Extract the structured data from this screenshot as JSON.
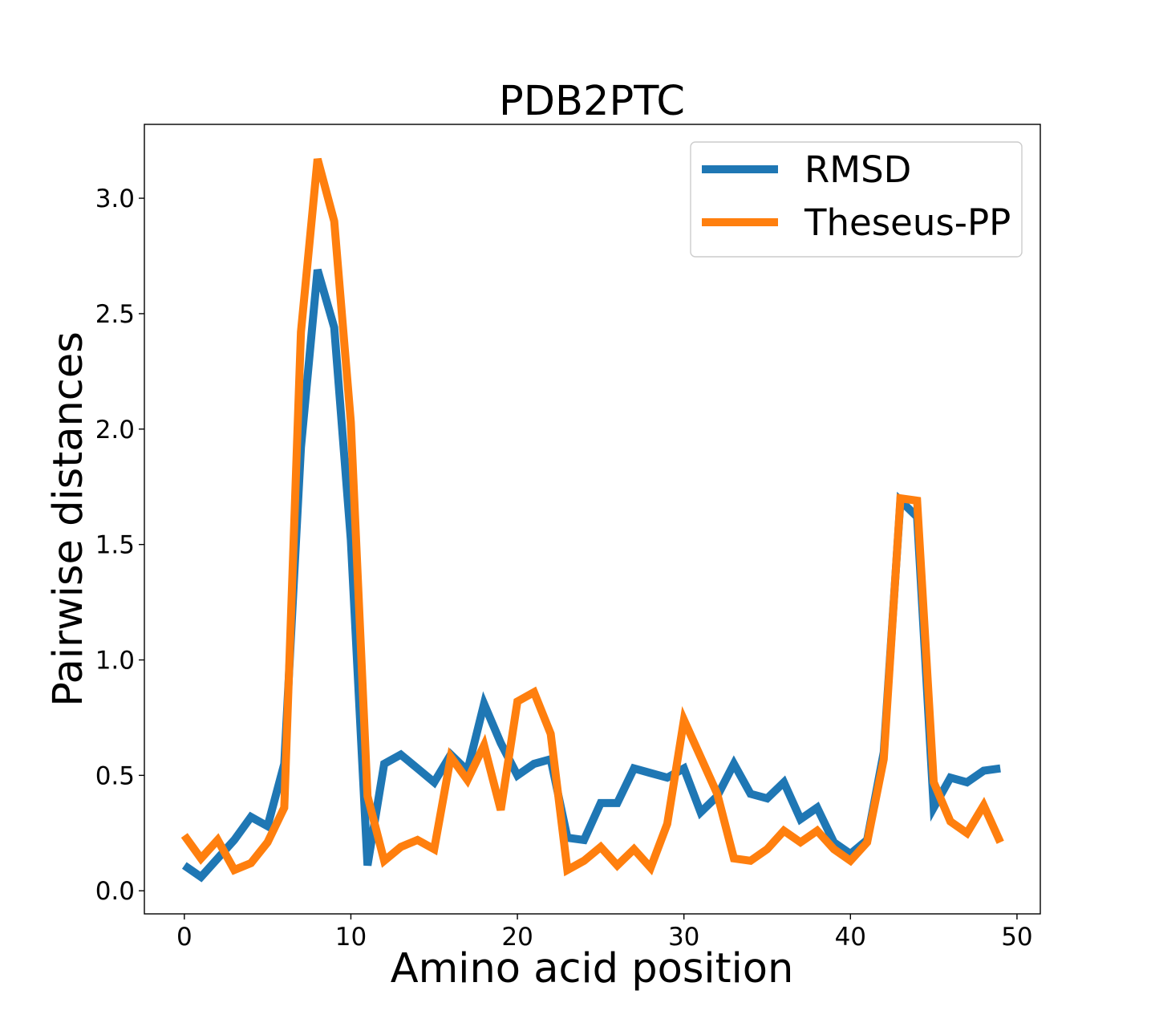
{
  "chart_data": {
    "type": "line",
    "title": "PDB2PTC",
    "xlabel": "Amino acid position",
    "ylabel": "Pairwise distances",
    "xlim": [
      -2.4,
      51.4
    ],
    "ylim": [
      -0.1,
      3.32
    ],
    "xticks": [
      0,
      10,
      20,
      30,
      40,
      50
    ],
    "yticks": [
      0.0,
      0.5,
      1.0,
      1.5,
      2.0,
      2.5,
      3.0
    ],
    "xtick_labels": [
      "0",
      "10",
      "20",
      "30",
      "40",
      "50"
    ],
    "ytick_labels": [
      "0.0",
      "0.5",
      "1.0",
      "1.5",
      "2.0",
      "2.5",
      "3.0"
    ],
    "grid": false,
    "legend_position": "top-right",
    "x": [
      0,
      1,
      2,
      3,
      4,
      5,
      6,
      7,
      8,
      9,
      10,
      11,
      12,
      13,
      14,
      15,
      16,
      17,
      18,
      19,
      20,
      21,
      22,
      23,
      24,
      25,
      26,
      27,
      28,
      29,
      30,
      31,
      32,
      33,
      34,
      35,
      36,
      37,
      38,
      39,
      40,
      41,
      42,
      43,
      44,
      45,
      46,
      47,
      48,
      49
    ],
    "series": [
      {
        "name": "RMSD",
        "color": "#1f77b4",
        "values": [
          0.11,
          0.06,
          0.14,
          0.22,
          0.32,
          0.28,
          0.55,
          1.92,
          2.69,
          2.44,
          1.52,
          0.11,
          0.55,
          0.59,
          0.53,
          0.47,
          0.59,
          0.52,
          0.81,
          0.64,
          0.5,
          0.55,
          0.57,
          0.23,
          0.22,
          0.38,
          0.38,
          0.53,
          0.51,
          0.49,
          0.53,
          0.34,
          0.41,
          0.55,
          0.42,
          0.4,
          0.47,
          0.31,
          0.36,
          0.21,
          0.16,
          0.22,
          0.6,
          1.69,
          1.62,
          0.36,
          0.49,
          0.47,
          0.52,
          0.53
        ]
      },
      {
        "name": "Theseus-PP",
        "color": "#ff7f0e",
        "values": [
          0.24,
          0.14,
          0.22,
          0.09,
          0.12,
          0.21,
          0.36,
          2.42,
          3.17,
          2.9,
          2.03,
          0.41,
          0.13,
          0.19,
          0.22,
          0.18,
          0.58,
          0.48,
          0.63,
          0.35,
          0.82,
          0.86,
          0.68,
          0.09,
          0.13,
          0.19,
          0.11,
          0.18,
          0.1,
          0.29,
          0.74,
          0.58,
          0.42,
          0.14,
          0.13,
          0.18,
          0.26,
          0.21,
          0.26,
          0.18,
          0.13,
          0.21,
          0.57,
          1.7,
          1.69,
          0.47,
          0.3,
          0.25,
          0.37,
          0.21
        ]
      }
    ]
  }
}
